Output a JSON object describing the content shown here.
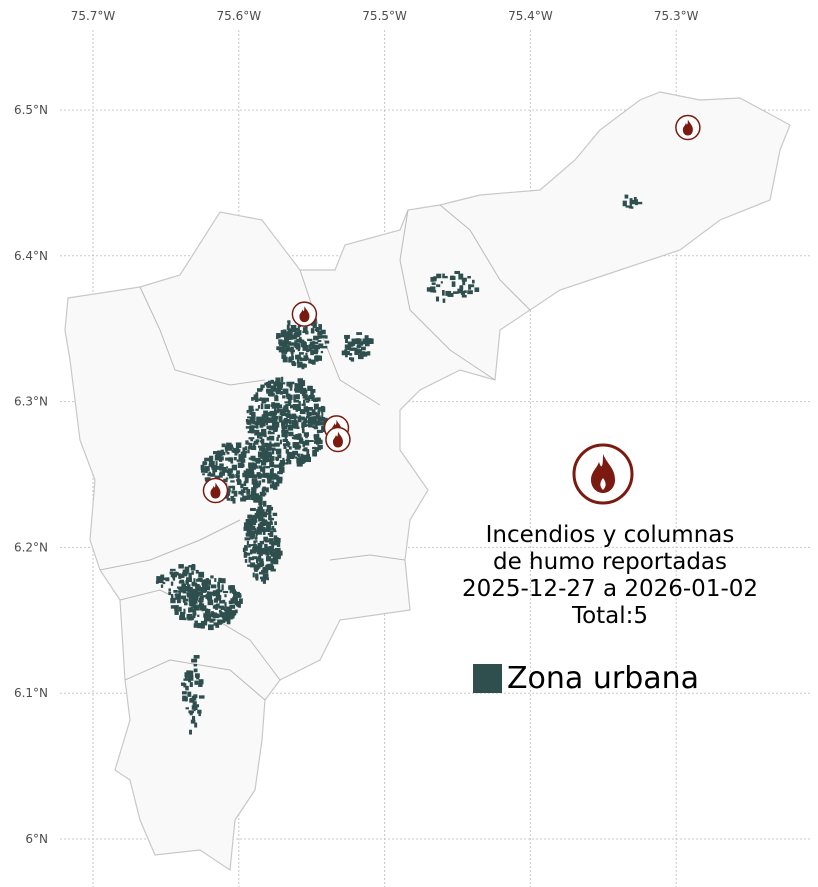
{
  "map": {
    "x_ticks": [
      {
        "lon": -75.7,
        "label": "75.7°W"
      },
      {
        "lon": -75.6,
        "label": "75.6°W"
      },
      {
        "lon": -75.5,
        "label": "75.5°W"
      },
      {
        "lon": -75.4,
        "label": "75.4°W"
      },
      {
        "lon": -75.3,
        "label": "75.3°W"
      }
    ],
    "y_ticks": [
      {
        "lat": 6.5,
        "label": "6.5°N"
      },
      {
        "lat": 6.4,
        "label": "6.4°N"
      },
      {
        "lat": 6.3,
        "label": "6.3°N"
      },
      {
        "lat": 6.2,
        "label": "6.2°N"
      },
      {
        "lat": 6.1,
        "label": "6.1°N"
      },
      {
        "lat": 6.0,
        "label": "6°N"
      }
    ],
    "fire_points": [
      {
        "lon": -75.555,
        "lat": 6.36
      },
      {
        "lon": -75.533,
        "lat": 6.282
      },
      {
        "lon": -75.532,
        "lat": 6.274
      },
      {
        "lon": -75.616,
        "lat": 6.239
      },
      {
        "lon": -75.292,
        "lat": 6.488
      }
    ],
    "fire_icon": "fire-icon",
    "colors": {
      "urban": "#2f4f4f",
      "fire": "#7a1a10",
      "region_fill": "#f9f9f9",
      "region_border": "#bdbdbd"
    }
  },
  "legend": {
    "title_lines": [
      "Incendios y columnas",
      "de humo reportadas",
      "2025-12-27 a 2026-01-02",
      "Total:5"
    ],
    "urban_label": "Zona urbana"
  }
}
